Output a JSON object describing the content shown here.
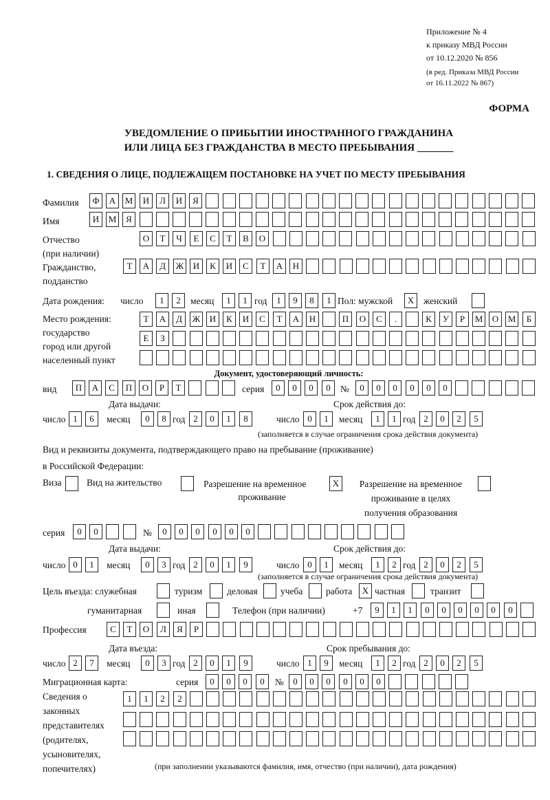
{
  "header": {
    "appendix": [
      "Приложение № 4",
      "к приказу МВД России",
      "от 10.12.2020 № 856"
    ],
    "revision": [
      "(в ред. Приказа МВД России",
      "от 16.11.2022 № 867)"
    ],
    "form_label": "ФОРМА",
    "title_line1": "УВЕДОМЛЕНИЕ О ПРИБЫТИИ ИНОСТРАННОГО ГРАЖДАНИНА",
    "title_line2": "ИЛИ ЛИЦА БЕЗ ГРАЖДАНСТВА В МЕСТО ПРЕБЫВАНИЯ _______",
    "section1": "1. СВЕДЕНИЯ О ЛИЦЕ, ПОДЛЕЖАЩЕМ ПОСТАНОВКЕ НА УЧЕТ ПО МЕСТУ ПРЕБЫВАНИЯ"
  },
  "labels": {
    "surname": "Фамилия",
    "name": "Имя",
    "patronymic": "Отчество",
    "patronymic_note": "(при наличии)",
    "citizenship": "Гражданство,",
    "citizenship2": "подданство",
    "birth_date": "Дата рождения:",
    "day": "число",
    "month": "месяц",
    "year": "год",
    "sex": "Пол: мужской",
    "female": "женский",
    "birth_place": [
      "Место рождения:",
      "государство",
      "город или другой",
      "населенный пункт"
    ],
    "id_doc": "Документ, удостоверяющий личность:",
    "kind": "вид",
    "series": "серия",
    "number_sign": "№",
    "issue_date": "Дата выдачи:",
    "valid_until": "Срок действия до:",
    "validity_note": "(заполняется в случае ограничения срока действия документа)",
    "stay_doc_line1": "Вид и реквизиты документа, подтверждающего право на пребывание (проживание)",
    "stay_doc_line2": "в Российской Федерации:",
    "visa": "Виза",
    "residence": "Вид на жительство",
    "temp_permit": [
      "Разрешение на временное",
      "проживание"
    ],
    "temp_permit_edu": [
      "Разрешение на временное",
      "проживание в целях",
      "получения образования"
    ],
    "purpose": "Цель въезда: служебная",
    "tourism": "туризм",
    "business": "деловая",
    "study": "учеба",
    "work": "работа",
    "private": "частная",
    "transit": "транзит",
    "humanitarian": "гуманитарная",
    "other": "иная",
    "phone": "Телефон (при наличии)",
    "phone_prefix": "+7",
    "profession": "Профессия",
    "entry_date": "Дата въезда:",
    "stay_until": "Срок пребывания до:",
    "migration_card": "Миграционная карта:",
    "representatives": [
      "Сведения о",
      "законных",
      "представителях",
      "(родителях,",
      "усыновителях,",
      "попечителях)"
    ],
    "representatives_note": "(при заполнении указываются фамилия, имя, отчество (при наличии), дата рождения)"
  },
  "values": {
    "surname": "ФАМИЛИЯ",
    "name": "ИМЯ",
    "patronymic": "ОТЧЕСТВО",
    "citizenship": "ТАДЖИКИСТАН",
    "birth_day": "12",
    "birth_month": "11",
    "birth_year": "1981",
    "male": "X",
    "female": "",
    "birth_place1": "ТАДЖИКИСТАН ПОС. КУРМОМБ",
    "birth_place2": "ЕЗ",
    "birth_place3": "",
    "id_kind": "ПАСПОРТ",
    "id_series": "0000",
    "id_number": "000000",
    "id_issue_day": "16",
    "id_issue_month": "08",
    "id_issue_year": "2018",
    "id_valid_day": "01",
    "id_valid_month": "11",
    "id_valid_year": "2025",
    "visa": "",
    "residence": "",
    "temp_permit": "X",
    "temp_permit_edu": "",
    "stay_series": "00",
    "stay_number": "000000",
    "stay_issue_day": "01",
    "stay_issue_month": "03",
    "stay_issue_year": "2019",
    "stay_valid_day": "01",
    "stay_valid_month": "12",
    "stay_valid_year": "2025",
    "p_service": "",
    "p_tourism": "",
    "p_business": "",
    "p_study": "",
    "p_work": "X",
    "p_private": "",
    "p_transit": "",
    "p_humanitarian": "",
    "p_other": "",
    "phone": "911000000",
    "profession": "СТОЛЯР",
    "entry_day": "27",
    "entry_month": "03",
    "entry_year": "2019",
    "stay_day": "19",
    "stay_month": "12",
    "stay_year": "2025",
    "mc_series": "0000",
    "mc_number": "000000",
    "rep1": "1122",
    "rep2": "",
    "rep3": ""
  }
}
